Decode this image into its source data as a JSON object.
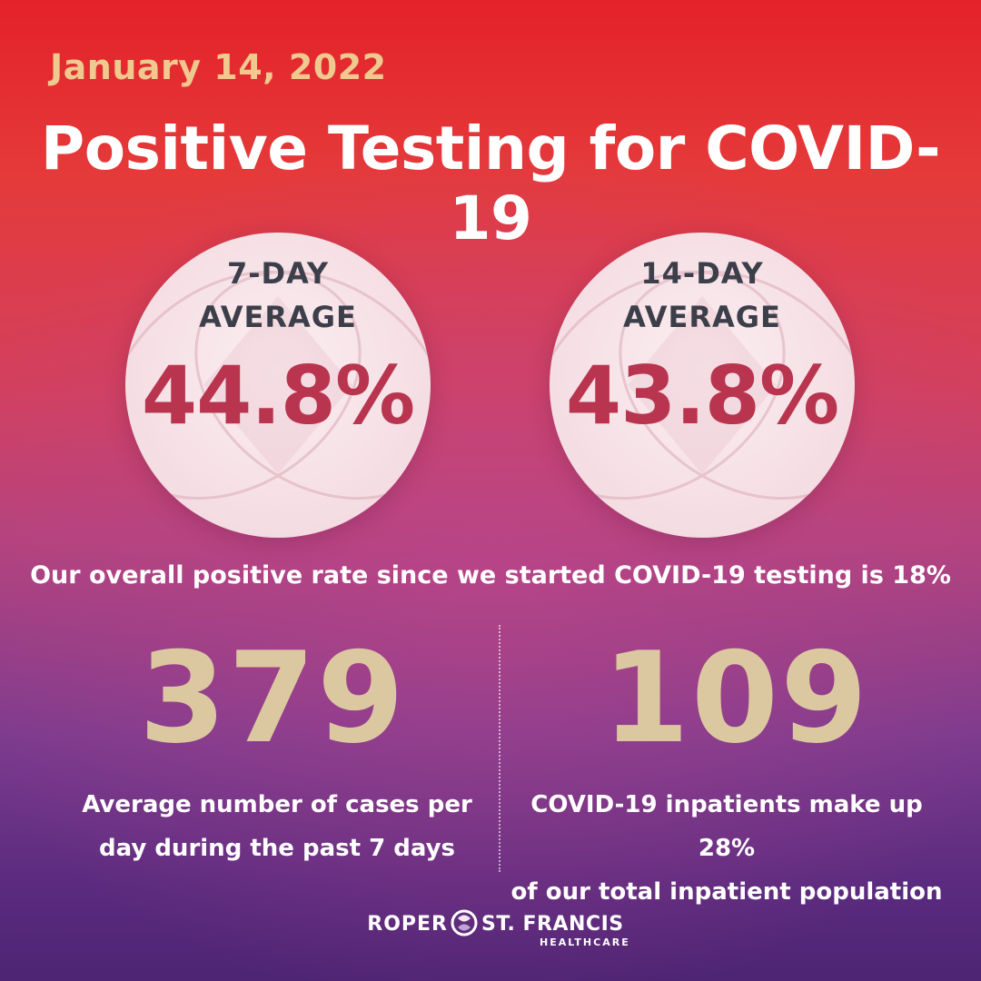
{
  "date": "January 14, 2022",
  "title": "Positive Testing for COVID-19",
  "circles": [
    {
      "label_line1": "7-DAY",
      "label_line2": "AVERAGE",
      "value": "44.8%"
    },
    {
      "label_line1": "14-DAY",
      "label_line2": "AVERAGE",
      "value": "43.8%"
    }
  ],
  "overall_rate": "Our overall positive rate since we started COVID-19 testing is 18%",
  "stats": [
    {
      "number": "379",
      "caption_line1": "Average number of cases per",
      "caption_line2": "day during the past 7 days"
    },
    {
      "number": "109",
      "caption_line1": "COVID-19 inpatients make up 28%",
      "caption_line2": "of our total inpatient population"
    }
  ],
  "logo": {
    "left_word": "ROPER",
    "right_word": "ST. FRANCIS",
    "sub_word": "HEALTHCARE",
    "icon": "roper-st-francis-logo-icon"
  },
  "colors": {
    "date": "#f0c98f",
    "title": "#ffffff",
    "percent": "#b9354f",
    "big_number": "#dcc8a0",
    "circle_label": "#3c3f4a"
  }
}
